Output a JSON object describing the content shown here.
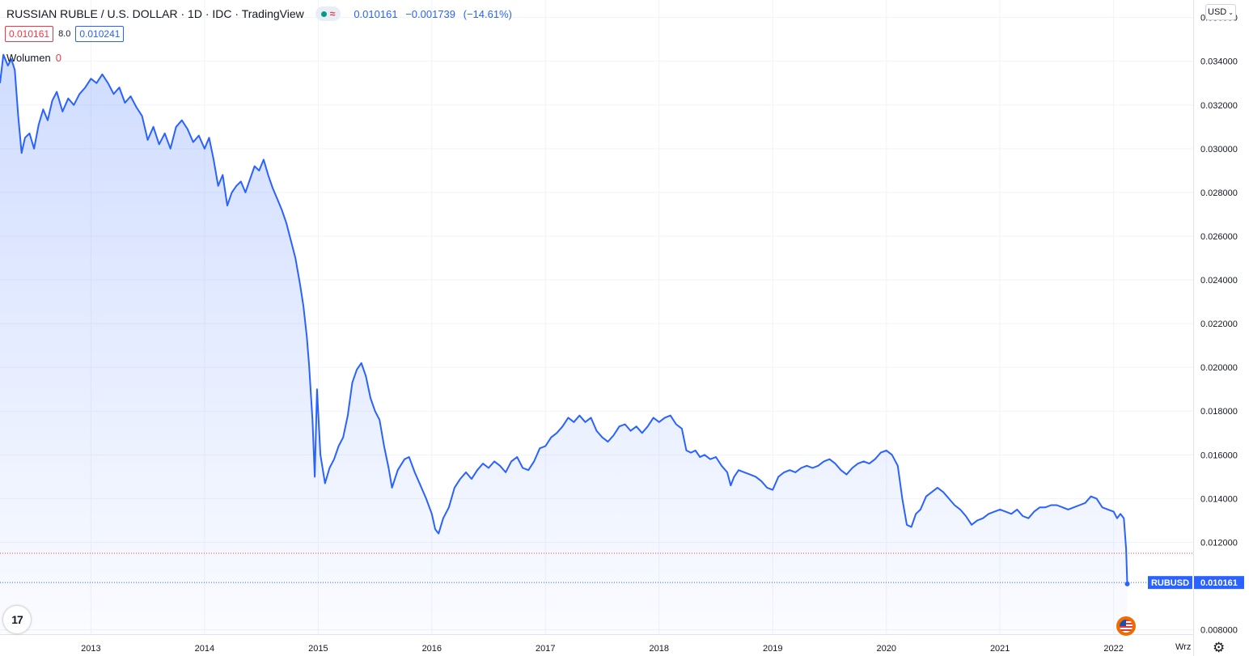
{
  "header": {
    "title": "RUSSIAN RUBLE / U.S. DOLLAR · 1D · IDC · TradingView",
    "wave_glyph": "≈",
    "last": "0.010161",
    "change": "−0.001739",
    "change_pct": "(−14.61%)"
  },
  "prices": {
    "bid": "0.010161",
    "spread": "8.0",
    "ask": "0.010241"
  },
  "volume": {
    "label": "Wolumen",
    "value": "0"
  },
  "currency": {
    "label": "USD"
  },
  "time_axis_extra": "Wrz",
  "chart_data": {
    "type": "area",
    "title": "",
    "xlabel": "",
    "ylabel": "",
    "ylim": [
      0.0078,
      0.0368
    ],
    "xlim": [
      2012.2,
      2022.7
    ],
    "y_ticks": [
      "0.036000",
      "0.034000",
      "0.032000",
      "0.030000",
      "0.028000",
      "0.026000",
      "0.024000",
      "0.022000",
      "0.020000",
      "0.018000",
      "0.016000",
      "0.014000",
      "0.012000",
      "0.008000"
    ],
    "x_ticks": [
      "2013",
      "2014",
      "2015",
      "2016",
      "2017",
      "2018",
      "2019",
      "2020",
      "2021",
      "2022"
    ],
    "grid": true,
    "series": [
      {
        "name": "RUBUSD",
        "color": "#2962ff",
        "points": [
          [
            2012.2,
            0.033
          ],
          [
            2012.23,
            0.0343
          ],
          [
            2012.27,
            0.0338
          ],
          [
            2012.3,
            0.0341
          ],
          [
            2012.33,
            0.0336
          ],
          [
            2012.36,
            0.0315
          ],
          [
            2012.39,
            0.0298
          ],
          [
            2012.42,
            0.0305
          ],
          [
            2012.46,
            0.0307
          ],
          [
            2012.5,
            0.03
          ],
          [
            2012.54,
            0.0311
          ],
          [
            2012.58,
            0.0318
          ],
          [
            2012.62,
            0.0313
          ],
          [
            2012.66,
            0.0322
          ],
          [
            2012.7,
            0.0326
          ],
          [
            2012.75,
            0.0317
          ],
          [
            2012.8,
            0.0323
          ],
          [
            2012.85,
            0.032
          ],
          [
            2012.9,
            0.0325
          ],
          [
            2012.95,
            0.0328
          ],
          [
            2013.0,
            0.0332
          ],
          [
            2013.05,
            0.033
          ],
          [
            2013.1,
            0.0334
          ],
          [
            2013.15,
            0.033
          ],
          [
            2013.2,
            0.0325
          ],
          [
            2013.25,
            0.0328
          ],
          [
            2013.3,
            0.0321
          ],
          [
            2013.35,
            0.0324
          ],
          [
            2013.4,
            0.0319
          ],
          [
            2013.45,
            0.0315
          ],
          [
            2013.5,
            0.0304
          ],
          [
            2013.55,
            0.031
          ],
          [
            2013.6,
            0.0302
          ],
          [
            2013.65,
            0.0307
          ],
          [
            2013.7,
            0.03
          ],
          [
            2013.75,
            0.031
          ],
          [
            2013.8,
            0.0313
          ],
          [
            2013.85,
            0.0309
          ],
          [
            2013.9,
            0.0303
          ],
          [
            2013.95,
            0.0306
          ],
          [
            2014.0,
            0.03
          ],
          [
            2014.04,
            0.0305
          ],
          [
            2014.08,
            0.0295
          ],
          [
            2014.12,
            0.0283
          ],
          [
            2014.16,
            0.0288
          ],
          [
            2014.2,
            0.0274
          ],
          [
            2014.24,
            0.028
          ],
          [
            2014.28,
            0.0283
          ],
          [
            2014.32,
            0.0285
          ],
          [
            2014.36,
            0.028
          ],
          [
            2014.4,
            0.0286
          ],
          [
            2014.44,
            0.0292
          ],
          [
            2014.48,
            0.029
          ],
          [
            2014.52,
            0.0295
          ],
          [
            2014.56,
            0.0288
          ],
          [
            2014.6,
            0.0282
          ],
          [
            2014.64,
            0.0277
          ],
          [
            2014.68,
            0.0272
          ],
          [
            2014.72,
            0.0266
          ],
          [
            2014.76,
            0.0258
          ],
          [
            2014.8,
            0.025
          ],
          [
            2014.84,
            0.0238
          ],
          [
            2014.87,
            0.0228
          ],
          [
            2014.9,
            0.0214
          ],
          [
            2014.92,
            0.0201
          ],
          [
            2014.95,
            0.0176
          ],
          [
            2014.97,
            0.015
          ],
          [
            2014.99,
            0.019
          ],
          [
            2015.02,
            0.016
          ],
          [
            2015.06,
            0.0147
          ],
          [
            2015.1,
            0.0154
          ],
          [
            2015.14,
            0.0158
          ],
          [
            2015.18,
            0.0164
          ],
          [
            2015.22,
            0.0168
          ],
          [
            2015.26,
            0.0178
          ],
          [
            2015.3,
            0.0193
          ],
          [
            2015.34,
            0.0199
          ],
          [
            2015.38,
            0.0202
          ],
          [
            2015.42,
            0.0196
          ],
          [
            2015.46,
            0.0186
          ],
          [
            2015.5,
            0.018
          ],
          [
            2015.54,
            0.0176
          ],
          [
            2015.58,
            0.0164
          ],
          [
            2015.62,
            0.0154
          ],
          [
            2015.65,
            0.0145
          ],
          [
            2015.7,
            0.0153
          ],
          [
            2015.76,
            0.0158
          ],
          [
            2015.8,
            0.0159
          ],
          [
            2015.85,
            0.0152
          ],
          [
            2015.9,
            0.0146
          ],
          [
            2015.95,
            0.014
          ],
          [
            2016.0,
            0.0133
          ],
          [
            2016.03,
            0.0126
          ],
          [
            2016.06,
            0.0124
          ],
          [
            2016.1,
            0.0131
          ],
          [
            2016.15,
            0.0136
          ],
          [
            2016.2,
            0.0145
          ],
          [
            2016.25,
            0.0149
          ],
          [
            2016.3,
            0.0152
          ],
          [
            2016.35,
            0.0149
          ],
          [
            2016.4,
            0.0153
          ],
          [
            2016.45,
            0.0156
          ],
          [
            2016.5,
            0.0154
          ],
          [
            2016.55,
            0.0157
          ],
          [
            2016.6,
            0.0155
          ],
          [
            2016.65,
            0.0152
          ],
          [
            2016.7,
            0.0157
          ],
          [
            2016.75,
            0.0159
          ],
          [
            2016.8,
            0.0154
          ],
          [
            2016.85,
            0.0153
          ],
          [
            2016.9,
            0.0157
          ],
          [
            2016.95,
            0.0163
          ],
          [
            2017.0,
            0.0164
          ],
          [
            2017.05,
            0.0168
          ],
          [
            2017.1,
            0.017
          ],
          [
            2017.15,
            0.0173
          ],
          [
            2017.2,
            0.0177
          ],
          [
            2017.25,
            0.0175
          ],
          [
            2017.3,
            0.0178
          ],
          [
            2017.35,
            0.0175
          ],
          [
            2017.4,
            0.0177
          ],
          [
            2017.45,
            0.0171
          ],
          [
            2017.5,
            0.0168
          ],
          [
            2017.55,
            0.0166
          ],
          [
            2017.6,
            0.0169
          ],
          [
            2017.65,
            0.0173
          ],
          [
            2017.7,
            0.0174
          ],
          [
            2017.75,
            0.0171
          ],
          [
            2017.8,
            0.0173
          ],
          [
            2017.85,
            0.017
          ],
          [
            2017.9,
            0.0173
          ],
          [
            2017.95,
            0.0177
          ],
          [
            2018.0,
            0.0175
          ],
          [
            2018.05,
            0.0177
          ],
          [
            2018.1,
            0.0178
          ],
          [
            2018.15,
            0.0174
          ],
          [
            2018.2,
            0.0172
          ],
          [
            2018.24,
            0.0162
          ],
          [
            2018.28,
            0.0161
          ],
          [
            2018.32,
            0.0162
          ],
          [
            2018.36,
            0.0159
          ],
          [
            2018.4,
            0.016
          ],
          [
            2018.45,
            0.0158
          ],
          [
            2018.5,
            0.0159
          ],
          [
            2018.55,
            0.0155
          ],
          [
            2018.6,
            0.0152
          ],
          [
            2018.63,
            0.0146
          ],
          [
            2018.66,
            0.015
          ],
          [
            2018.7,
            0.0153
          ],
          [
            2018.75,
            0.0152
          ],
          [
            2018.8,
            0.0151
          ],
          [
            2018.85,
            0.015
          ],
          [
            2018.9,
            0.0148
          ],
          [
            2018.95,
            0.0145
          ],
          [
            2019.0,
            0.0144
          ],
          [
            2019.05,
            0.015
          ],
          [
            2019.1,
            0.0152
          ],
          [
            2019.15,
            0.0153
          ],
          [
            2019.2,
            0.0152
          ],
          [
            2019.25,
            0.0154
          ],
          [
            2019.3,
            0.0155
          ],
          [
            2019.35,
            0.0154
          ],
          [
            2019.4,
            0.0155
          ],
          [
            2019.45,
            0.0157
          ],
          [
            2019.5,
            0.0158
          ],
          [
            2019.55,
            0.0156
          ],
          [
            2019.6,
            0.0153
          ],
          [
            2019.65,
            0.0151
          ],
          [
            2019.7,
            0.0154
          ],
          [
            2019.75,
            0.0156
          ],
          [
            2019.8,
            0.0157
          ],
          [
            2019.85,
            0.0156
          ],
          [
            2019.9,
            0.0158
          ],
          [
            2019.95,
            0.0161
          ],
          [
            2020.0,
            0.0162
          ],
          [
            2020.05,
            0.016
          ],
          [
            2020.1,
            0.0155
          ],
          [
            2020.14,
            0.014
          ],
          [
            2020.18,
            0.0128
          ],
          [
            2020.22,
            0.0127
          ],
          [
            2020.26,
            0.0133
          ],
          [
            2020.3,
            0.0135
          ],
          [
            2020.35,
            0.0141
          ],
          [
            2020.4,
            0.0143
          ],
          [
            2020.45,
            0.0145
          ],
          [
            2020.5,
            0.0143
          ],
          [
            2020.55,
            0.014
          ],
          [
            2020.6,
            0.0137
          ],
          [
            2020.65,
            0.0135
          ],
          [
            2020.7,
            0.0132
          ],
          [
            2020.75,
            0.0128
          ],
          [
            2020.8,
            0.013
          ],
          [
            2020.85,
            0.0131
          ],
          [
            2020.9,
            0.0133
          ],
          [
            2020.95,
            0.0134
          ],
          [
            2021.0,
            0.0135
          ],
          [
            2021.05,
            0.0134
          ],
          [
            2021.1,
            0.0133
          ],
          [
            2021.15,
            0.0135
          ],
          [
            2021.2,
            0.0132
          ],
          [
            2021.25,
            0.0131
          ],
          [
            2021.3,
            0.0134
          ],
          [
            2021.35,
            0.0136
          ],
          [
            2021.4,
            0.0136
          ],
          [
            2021.45,
            0.0137
          ],
          [
            2021.5,
            0.0137
          ],
          [
            2021.55,
            0.0136
          ],
          [
            2021.6,
            0.0135
          ],
          [
            2021.65,
            0.0136
          ],
          [
            2021.7,
            0.0137
          ],
          [
            2021.75,
            0.0138
          ],
          [
            2021.8,
            0.0141
          ],
          [
            2021.85,
            0.014
          ],
          [
            2021.9,
            0.0136
          ],
          [
            2021.95,
            0.0135
          ],
          [
            2022.0,
            0.0134
          ],
          [
            2022.03,
            0.0131
          ],
          [
            2022.06,
            0.0133
          ],
          [
            2022.09,
            0.0131
          ],
          [
            2022.11,
            0.0117
          ],
          [
            2022.12,
            0.0101
          ]
        ]
      }
    ],
    "reference_lines": [
      {
        "value": 0.0115,
        "color": "#f23645",
        "style": "dotted"
      },
      {
        "value": 0.010161,
        "color": "#2962ff",
        "style": "dotted"
      }
    ],
    "last_label": {
      "name": "RUBUSD",
      "value": "0.010161",
      "color": "#2962ff"
    }
  }
}
